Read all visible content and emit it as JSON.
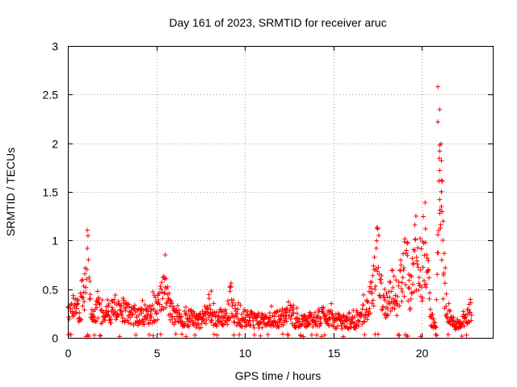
{
  "chart_data": {
    "type": "scatter",
    "title": "Day 161 of 2023, SRMTID for receiver aruc",
    "xlabel": "GPS time / hours",
    "ylabel": "SRMTID / TECUs",
    "xlim": [
      0,
      24
    ],
    "ylim": [
      0,
      3
    ],
    "xticks": [
      0,
      5,
      10,
      15,
      20
    ],
    "xtick_labels": [
      "0",
      "5",
      "10",
      "15",
      "20"
    ],
    "yticks": [
      0,
      0.5,
      1,
      1.5,
      2,
      2.5,
      3
    ],
    "ytick_labels": [
      "0",
      "0.5",
      "1",
      "1.5",
      "2",
      "2.5",
      "3"
    ],
    "grid": true,
    "marker": "+",
    "series": [
      {
        "name": "SRMTID",
        "color": "#ff0000",
        "profile": [
          [
            0.0,
            0.26
          ],
          [
            0.3,
            0.3
          ],
          [
            0.5,
            0.27
          ],
          [
            0.8,
            0.35
          ],
          [
            0.9,
            0.45
          ],
          [
            1.0,
            0.6
          ],
          [
            1.1,
            0.85
          ],
          [
            1.2,
            0.6
          ],
          [
            1.3,
            0.32
          ],
          [
            1.5,
            0.25
          ],
          [
            1.8,
            0.3
          ],
          [
            2.0,
            0.2
          ],
          [
            2.5,
            0.27
          ],
          [
            3.0,
            0.3
          ],
          [
            3.5,
            0.25
          ],
          [
            4.0,
            0.22
          ],
          [
            4.5,
            0.22
          ],
          [
            5.0,
            0.3
          ],
          [
            5.3,
            0.42
          ],
          [
            5.5,
            0.48
          ],
          [
            5.8,
            0.28
          ],
          [
            6.0,
            0.22
          ],
          [
            7.0,
            0.2
          ],
          [
            7.5,
            0.17
          ],
          [
            8.0,
            0.3
          ],
          [
            8.2,
            0.2
          ],
          [
            9.0,
            0.22
          ],
          [
            9.2,
            0.38
          ],
          [
            9.5,
            0.22
          ],
          [
            10.0,
            0.2
          ],
          [
            11.0,
            0.17
          ],
          [
            12.0,
            0.2
          ],
          [
            12.5,
            0.25
          ],
          [
            13.0,
            0.16
          ],
          [
            14.0,
            0.18
          ],
          [
            14.5,
            0.25
          ],
          [
            15.0,
            0.18
          ],
          [
            16.0,
            0.15
          ],
          [
            16.5,
            0.2
          ],
          [
            17.0,
            0.32
          ],
          [
            17.3,
            0.55
          ],
          [
            17.5,
            0.85
          ],
          [
            17.8,
            0.38
          ],
          [
            18.0,
            0.35
          ],
          [
            18.3,
            0.5
          ],
          [
            18.6,
            0.4
          ],
          [
            19.0,
            0.75
          ],
          [
            19.3,
            0.5
          ],
          [
            19.6,
            0.8
          ],
          [
            19.9,
            0.55
          ],
          [
            20.2,
            0.95
          ],
          [
            20.5,
            0.2
          ],
          [
            20.8,
            0.14
          ],
          [
            21.0,
            1.6
          ],
          [
            21.1,
            1.4
          ],
          [
            21.2,
            0.6
          ],
          [
            21.4,
            0.3
          ],
          [
            21.7,
            0.16
          ],
          [
            22.0,
            0.14
          ],
          [
            22.5,
            0.18
          ],
          [
            22.8,
            0.32
          ]
        ],
        "peaks": [
          [
            1.1,
            0.92
          ],
          [
            5.5,
            0.52
          ],
          [
            8.1,
            0.48
          ],
          [
            9.2,
            0.52
          ],
          [
            17.5,
            1.12
          ],
          [
            19.2,
            0.98
          ],
          [
            19.9,
            1.02
          ],
          [
            20.2,
            1.12
          ],
          [
            20.9,
            2.58
          ],
          [
            20.9,
            2.22
          ],
          [
            21.0,
            1.98
          ],
          [
            21.0,
            1.92
          ],
          [
            21.1,
            1.82
          ],
          [
            21.0,
            1.72
          ],
          [
            21.1,
            1.62
          ],
          [
            21.1,
            1.5
          ],
          [
            21.0,
            1.42
          ],
          [
            21.1,
            1.35
          ],
          [
            21.2,
            1.2
          ],
          [
            21.0,
            1.28
          ]
        ]
      }
    ]
  }
}
